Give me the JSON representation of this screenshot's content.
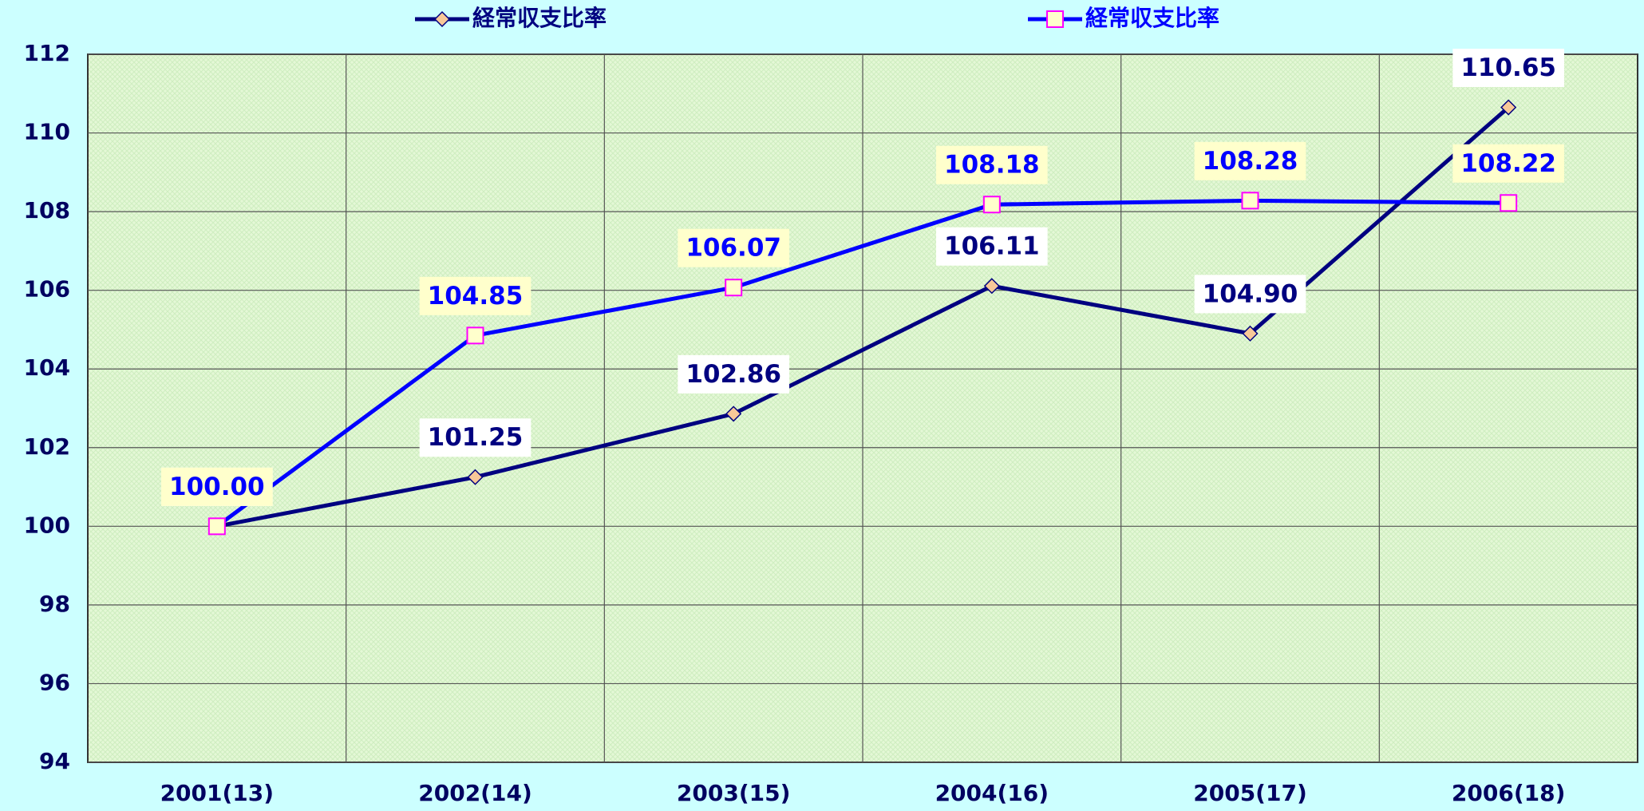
{
  "chart_data": {
    "type": "line",
    "categories": [
      "2001(13)",
      "2002(14)",
      "2003(15)",
      "2004(16)",
      "2005(17)",
      "2006(18)"
    ],
    "series": [
      {
        "name": "経常収支比率",
        "color": "#000080",
        "marker": "diamond",
        "marker_fill": "#f8c898",
        "marker_stroke": "#000080",
        "label_bg": "#ffffff",
        "values": [
          100.0,
          101.25,
          102.86,
          106.11,
          104.9,
          110.65
        ],
        "value_labels": [
          "100.00",
          "101.25",
          "102.86",
          "106.11",
          "104.90",
          "110.65"
        ]
      },
      {
        "name": "経常収支比率",
        "color": "#0000ff",
        "marker": "square",
        "marker_fill": "#ffffcc",
        "marker_stroke": "#ff00ff",
        "label_bg": "#ffffcc",
        "values": [
          100.0,
          104.85,
          106.07,
          108.18,
          108.28,
          108.22
        ],
        "value_labels": [
          "100.00",
          "104.85",
          "106.07",
          "108.18",
          "108.28",
          "108.22"
        ]
      }
    ],
    "ylim": [
      94,
      112
    ],
    "yticks": [
      94,
      96,
      98,
      100,
      102,
      104,
      106,
      108,
      110,
      112
    ],
    "grid": true,
    "legend": "top"
  }
}
